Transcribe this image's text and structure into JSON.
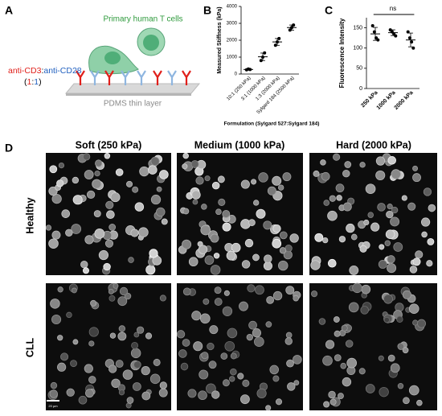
{
  "panel_labels": [
    "A",
    "B",
    "C",
    "D"
  ],
  "schematic": {
    "antibodies": [
      "anti-CD3",
      ":",
      "anti-CD28"
    ],
    "ratio": [
      "(",
      "1",
      ":",
      "1",
      ")"
    ],
    "cells_label": "Primary human T cells",
    "substrate_label": "PDMS thin layer"
  },
  "chart_data": [
    {
      "type": "dot",
      "y_label": "Measured Stiffness (kPa)",
      "x_label": "Formulation (Sylgard 527:Sylgard 184)",
      "categories": [
        "10:1 (250 kPa)",
        "3:1 (1000 kPa)",
        "1:3 (2000 kPa)",
        "Sylgard 184 (2500 kPa)"
      ],
      "values": [
        270,
        1020,
        1900,
        2750
      ],
      "errors": [
        40,
        220,
        200,
        150
      ],
      "points": [
        [
          250,
          300,
          270
        ],
        [
          800,
          1000,
          1250
        ],
        [
          1700,
          1900,
          2100
        ],
        [
          2600,
          2750,
          2900
        ]
      ],
      "color": "#000000",
      "ylim": [
        0,
        4000
      ],
      "yticks": [
        0,
        1000,
        2000,
        3000,
        4000
      ]
    },
    {
      "type": "dot",
      "y_label": "Fluorescence Intensity",
      "categories": [
        "250 kPa",
        "1000 kPa",
        "2000 kPa"
      ],
      "values": [
        135,
        138,
        120
      ],
      "errors": [
        16,
        7,
        17
      ],
      "points": [
        [
          155,
          140,
          125,
          120
        ],
        [
          145,
          140,
          135,
          130
        ],
        [
          140,
          125,
          115,
          100
        ]
      ],
      "color": "#000000",
      "ylim": [
        0,
        175
      ],
      "yticks": [
        0,
        50,
        100,
        150
      ],
      "annotation": "ns"
    }
  ],
  "micrographs": {
    "columns": [
      "Soft (250 kPa)",
      "Medium (1000 kPa)",
      "Hard (2000 kPa)"
    ],
    "rows": [
      "Healthy",
      "CLL"
    ],
    "scale_bar": "20 µm"
  }
}
